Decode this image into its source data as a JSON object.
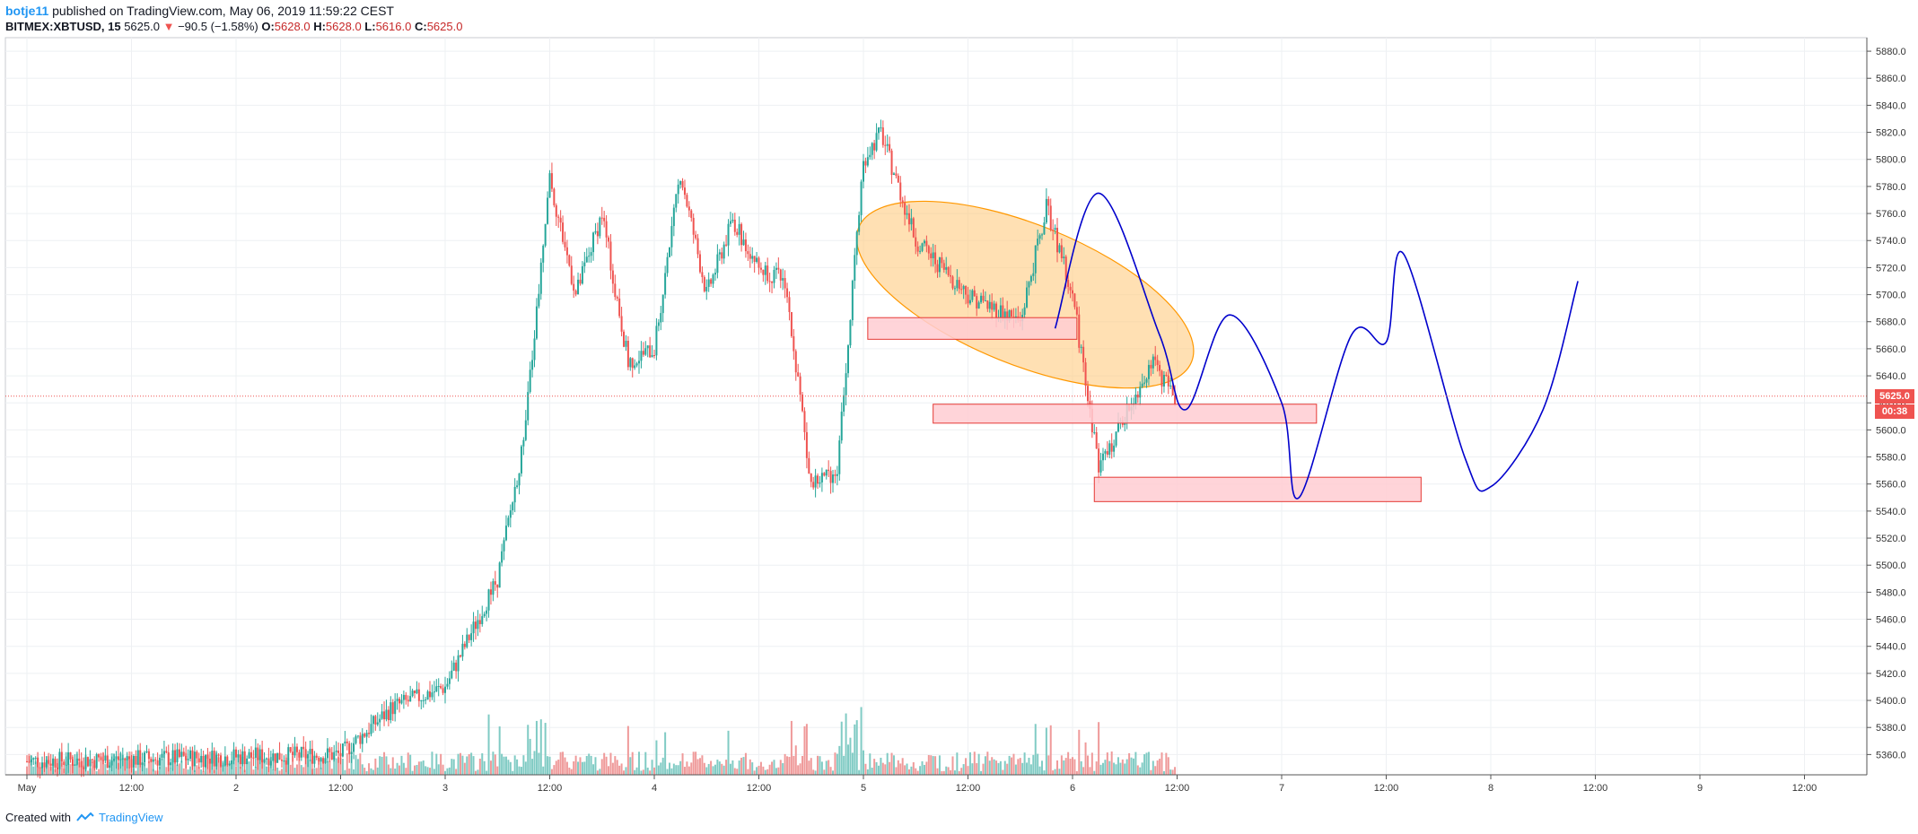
{
  "header": {
    "user": "botje11",
    "published_text": "published on TradingView.com, May 06, 2019 11:59:22 CEST",
    "symbol": "BITMEX:XBTUSD, 15",
    "last": "5625.0",
    "arrow": "▼",
    "change": "−90.5 (−1.58%)",
    "o_label": "O:",
    "o": "5628.0",
    "h_label": "H:",
    "h": "5628.0",
    "l_label": "L:",
    "l": "5616.0",
    "c_label": "C:",
    "c": "5625.0"
  },
  "footer": {
    "created": "Created with",
    "brand": "TradingView"
  },
  "price_axis": {
    "current_price": "5625.0",
    "countdown": "00:38",
    "current_color": "#ef5350"
  },
  "colors": {
    "up": "#26a69a",
    "down": "#ef5350",
    "vol_up": "#80cbc4",
    "vol_down": "#ef9a9a",
    "drawing_line": "#0000cc",
    "ellipse_fill": "#ffcc80",
    "ellipse_stroke": "#ff9800",
    "zone_fill": "#ffcdd2",
    "zone_stroke": "#e53935"
  },
  "chart_data": {
    "type": "candlestick",
    "symbol": "BITMEX:XBTUSD",
    "interval": "15",
    "ylim": [
      5345,
      5890
    ],
    "y_ticks": [
      5360,
      5380,
      5400,
      5420,
      5440,
      5460,
      5480,
      5500,
      5520,
      5540,
      5560,
      5580,
      5600,
      5620,
      5640,
      5660,
      5680,
      5700,
      5720,
      5740,
      5760,
      5780,
      5800,
      5820,
      5840,
      5860,
      5880
    ],
    "x_ticks": [
      "May",
      "12:00",
      "2",
      "12:00",
      "3",
      "12:00",
      "4",
      "12:00",
      "5",
      "12:00",
      "6",
      "12:00",
      "7",
      "12:00",
      "8",
      "12:00",
      "9",
      "12:00"
    ],
    "grid": true,
    "price_path_approx": [
      {
        "x": "May 1 00:00",
        "y": 5355
      },
      {
        "x": "May 2 12:00",
        "y": 5360
      },
      {
        "x": "May 2 18:00",
        "y": 5395
      },
      {
        "x": "May 3 00:00",
        "y": 5410
      },
      {
        "x": "May 3 06:00",
        "y": 5490
      },
      {
        "x": "May 3 09:00",
        "y": 5590
      },
      {
        "x": "May 3 12:00",
        "y": 5785
      },
      {
        "x": "May 3 15:00",
        "y": 5700
      },
      {
        "x": "May 3 18:00",
        "y": 5760
      },
      {
        "x": "May 3 21:00",
        "y": 5650
      },
      {
        "x": "May 4 00:00",
        "y": 5660
      },
      {
        "x": "May 4 03:00",
        "y": 5790
      },
      {
        "x": "May 4 06:00",
        "y": 5700
      },
      {
        "x": "May 4 09:00",
        "y": 5755
      },
      {
        "x": "May 4 12:00",
        "y": 5720
      },
      {
        "x": "May 4 15:00",
        "y": 5710
      },
      {
        "x": "May 4 18:00",
        "y": 5560
      },
      {
        "x": "May 4 21:00",
        "y": 5570
      },
      {
        "x": "May 5 00:00",
        "y": 5800
      },
      {
        "x": "May 5 02:00",
        "y": 5820
      },
      {
        "x": "May 5 06:00",
        "y": 5740
      },
      {
        "x": "May 5 12:00",
        "y": 5700
      },
      {
        "x": "May 5 18:00",
        "y": 5680
      },
      {
        "x": "May 5 21:00",
        "y": 5765
      },
      {
        "x": "May 6 00:00",
        "y": 5700
      },
      {
        "x": "May 6 03:00",
        "y": 5570
      },
      {
        "x": "May 6 06:00",
        "y": 5610
      },
      {
        "x": "May 6 09:00",
        "y": 5650
      },
      {
        "x": "May 6 11:45",
        "y": 5625
      }
    ],
    "annotations": {
      "zones": [
        {
          "from": "May 5 00:30",
          "to": "May 6 00:30",
          "low": 5667,
          "high": 5683
        },
        {
          "from": "May 5 08:00",
          "to": "May 7 04:00",
          "low": 5605,
          "high": 5619
        },
        {
          "from": "May 6 02:30",
          "to": "May 7 16:00",
          "low": 5547,
          "high": 5565
        }
      ],
      "projection_path": [
        {
          "x": "May 5 22:00",
          "y": 5675
        },
        {
          "x": "May 6 03:00",
          "y": 5775
        },
        {
          "x": "May 6 10:00",
          "y": 5670
        },
        {
          "x": "May 6 13:00",
          "y": 5615
        },
        {
          "x": "May 6 18:00",
          "y": 5685
        },
        {
          "x": "May 7 00:00",
          "y": 5620
        },
        {
          "x": "May 7 02:00",
          "y": 5550
        },
        {
          "x": "May 7 08:00",
          "y": 5670
        },
        {
          "x": "May 7 12:00",
          "y": 5665
        },
        {
          "x": "May 7 14:00",
          "y": 5730
        },
        {
          "x": "May 7 21:00",
          "y": 5580
        },
        {
          "x": "May 8 00:00",
          "y": 5558
        },
        {
          "x": "May 8 06:00",
          "y": 5615
        },
        {
          "x": "May 8 10:00",
          "y": 5710
        }
      ]
    }
  }
}
